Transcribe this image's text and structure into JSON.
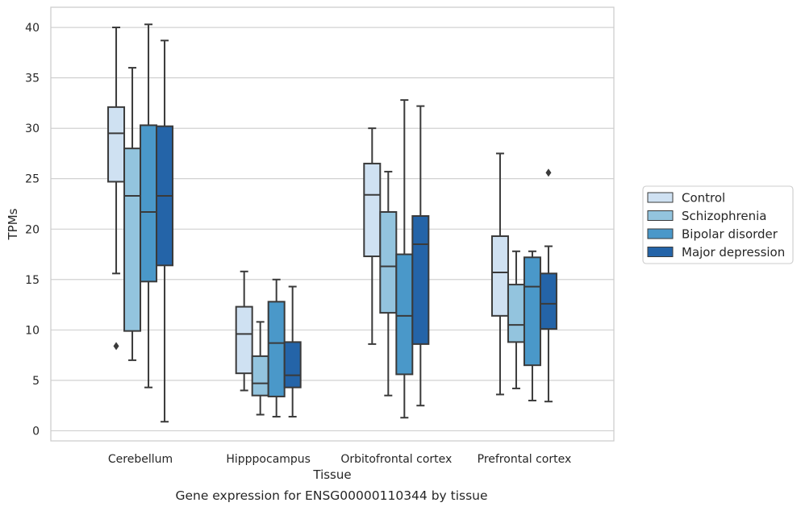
{
  "caption": "Gene expression for ENSG00000110344 by tissue",
  "chart_data": {
    "type": "box",
    "title": "",
    "xlabel": "Tissue",
    "ylabel": "TPMs",
    "ylim": [
      -1,
      42
    ],
    "yticks": [
      0,
      5,
      10,
      15,
      20,
      25,
      30,
      35,
      40
    ],
    "grid": "horizontal",
    "legend_position": "right",
    "categories": [
      "Cerebellum",
      "Hipppocampus",
      "Orbitofrontal cortex",
      "Prefrontal cortex"
    ],
    "series": [
      {
        "name": "Control",
        "color": "#cfe1f2",
        "boxes": [
          {
            "whisker_low": 15.6,
            "q1": 24.7,
            "median": 29.5,
            "q3": 32.1,
            "whisker_high": 40.0,
            "outliers": [
              8.4
            ]
          },
          {
            "whisker_low": 4.0,
            "q1": 5.7,
            "median": 9.6,
            "q3": 12.3,
            "whisker_high": 15.8,
            "outliers": []
          },
          {
            "whisker_low": 8.6,
            "q1": 17.3,
            "median": 23.4,
            "q3": 26.5,
            "whisker_high": 30.0,
            "outliers": []
          },
          {
            "whisker_low": 3.6,
            "q1": 11.4,
            "median": 15.7,
            "q3": 19.3,
            "whisker_high": 27.5,
            "outliers": []
          }
        ]
      },
      {
        "name": "Schizophrenia",
        "color": "#93c4de",
        "boxes": [
          {
            "whisker_low": 7.0,
            "q1": 9.9,
            "median": 23.3,
            "q3": 28.0,
            "whisker_high": 36.0,
            "outliers": []
          },
          {
            "whisker_low": 1.6,
            "q1": 3.5,
            "median": 4.7,
            "q3": 7.4,
            "whisker_high": 10.8,
            "outliers": []
          },
          {
            "whisker_low": 3.5,
            "q1": 11.7,
            "median": 16.3,
            "q3": 21.7,
            "whisker_high": 25.7,
            "outliers": []
          },
          {
            "whisker_low": 4.2,
            "q1": 8.8,
            "median": 10.5,
            "q3": 14.5,
            "whisker_high": 17.8,
            "outliers": []
          }
        ]
      },
      {
        "name": "Bipolar disorder",
        "color": "#4a98c9",
        "boxes": [
          {
            "whisker_low": 4.3,
            "q1": 14.8,
            "median": 21.7,
            "q3": 30.3,
            "whisker_high": 40.3,
            "outliers": []
          },
          {
            "whisker_low": 1.4,
            "q1": 3.4,
            "median": 8.7,
            "q3": 12.8,
            "whisker_high": 15.0,
            "outliers": []
          },
          {
            "whisker_low": 1.3,
            "q1": 5.6,
            "median": 11.4,
            "q3": 17.5,
            "whisker_high": 32.8,
            "outliers": []
          },
          {
            "whisker_low": 3.0,
            "q1": 6.5,
            "median": 14.3,
            "q3": 17.2,
            "whisker_high": 17.8,
            "outliers": []
          }
        ]
      },
      {
        "name": "Major depression",
        "color": "#2464a8",
        "boxes": [
          {
            "whisker_low": 0.9,
            "q1": 16.4,
            "median": 23.3,
            "q3": 30.2,
            "whisker_high": 38.7,
            "outliers": []
          },
          {
            "whisker_low": 1.4,
            "q1": 4.3,
            "median": 5.5,
            "q3": 8.8,
            "whisker_high": 14.3,
            "outliers": []
          },
          {
            "whisker_low": 2.5,
            "q1": 8.6,
            "median": 18.5,
            "q3": 21.3,
            "whisker_high": 32.2,
            "outliers": []
          },
          {
            "whisker_low": 2.9,
            "q1": 10.1,
            "median": 12.6,
            "q3": 15.6,
            "whisker_high": 18.3,
            "outliers": [
              25.6
            ]
          }
        ]
      }
    ]
  }
}
